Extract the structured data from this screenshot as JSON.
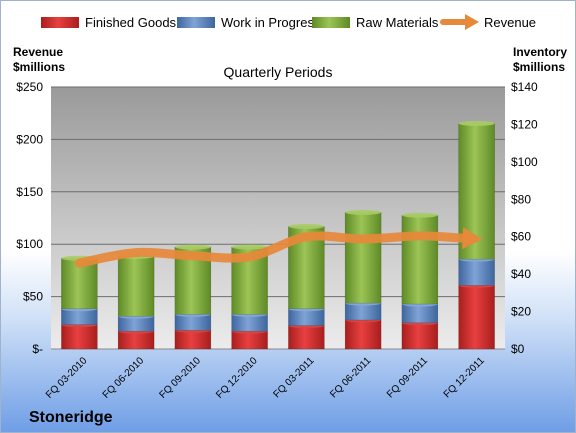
{
  "company": "Stoneridge",
  "chart_data": {
    "type": "bar",
    "stacked": true,
    "title": "Quarterly Periods",
    "categories": [
      "FQ 03-2010",
      "FQ 06-2010",
      "FQ 09-2010",
      "FQ 12-2010",
      "FQ 03-2011",
      "FQ 06-2011",
      "FQ 09-2011",
      "FQ 12-2011"
    ],
    "left_axis": {
      "label_line1": "Revenue",
      "label_line2": "$millions",
      "ylim": [
        0,
        250
      ],
      "ticks": [
        "$-",
        "$50",
        "$100",
        "$150",
        "$200",
        "$250"
      ],
      "tick_values": [
        0,
        50,
        100,
        150,
        200,
        250
      ]
    },
    "right_axis": {
      "label_line1": "Inventory",
      "label_line2": "$millions",
      "ylim": [
        0,
        140
      ],
      "ticks": [
        "$0",
        "$20",
        "$40",
        "$60",
        "$80",
        "$100",
        "$120",
        "$140"
      ],
      "tick_values": [
        0,
        20,
        40,
        60,
        80,
        100,
        120,
        140
      ]
    },
    "series": [
      {
        "name": "Finished Goods",
        "axis": "right",
        "color": "#cc2a2a",
        "values": [
          13,
          9.5,
          10,
          9.5,
          12.5,
          15.5,
          14,
          34
        ]
      },
      {
        "name": "Work in Progress",
        "axis": "right",
        "color": "#4f7fbf",
        "values": [
          8.5,
          8,
          8.5,
          9,
          9,
          9,
          10,
          14
        ]
      },
      {
        "name": "Raw Materials",
        "axis": "right",
        "color": "#7fa83a",
        "values": [
          27,
          32,
          36,
          36,
          44,
          48.5,
          47.5,
          72.5
        ]
      }
    ],
    "line_series": {
      "name": "Revenue",
      "axis": "left",
      "color": "#e8883a",
      "values": [
        82,
        92,
        89,
        88,
        107,
        105,
        108,
        105
      ]
    },
    "legend_position": "top",
    "grid": true
  }
}
